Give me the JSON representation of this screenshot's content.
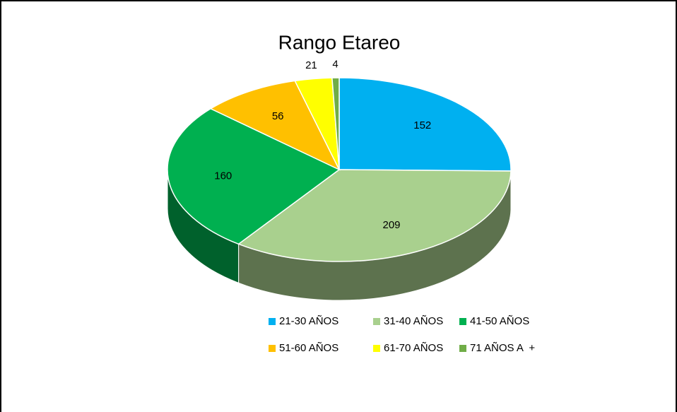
{
  "chart_data": {
    "type": "pie3d",
    "title": "Rango Etareo",
    "categories": [
      "21-30 AÑOS",
      "31-40 AÑOS",
      "41-50 AÑOS",
      "51-60 AÑOS",
      "61-70 AÑOS",
      "71 AÑOS A  +"
    ],
    "values": [
      152,
      209,
      160,
      56,
      21,
      4
    ],
    "colors": [
      "#00b0f0",
      "#a9d08e",
      "#00b050",
      "#ffc000",
      "#ffff00",
      "#70ad47"
    ],
    "legend": "bottom"
  }
}
